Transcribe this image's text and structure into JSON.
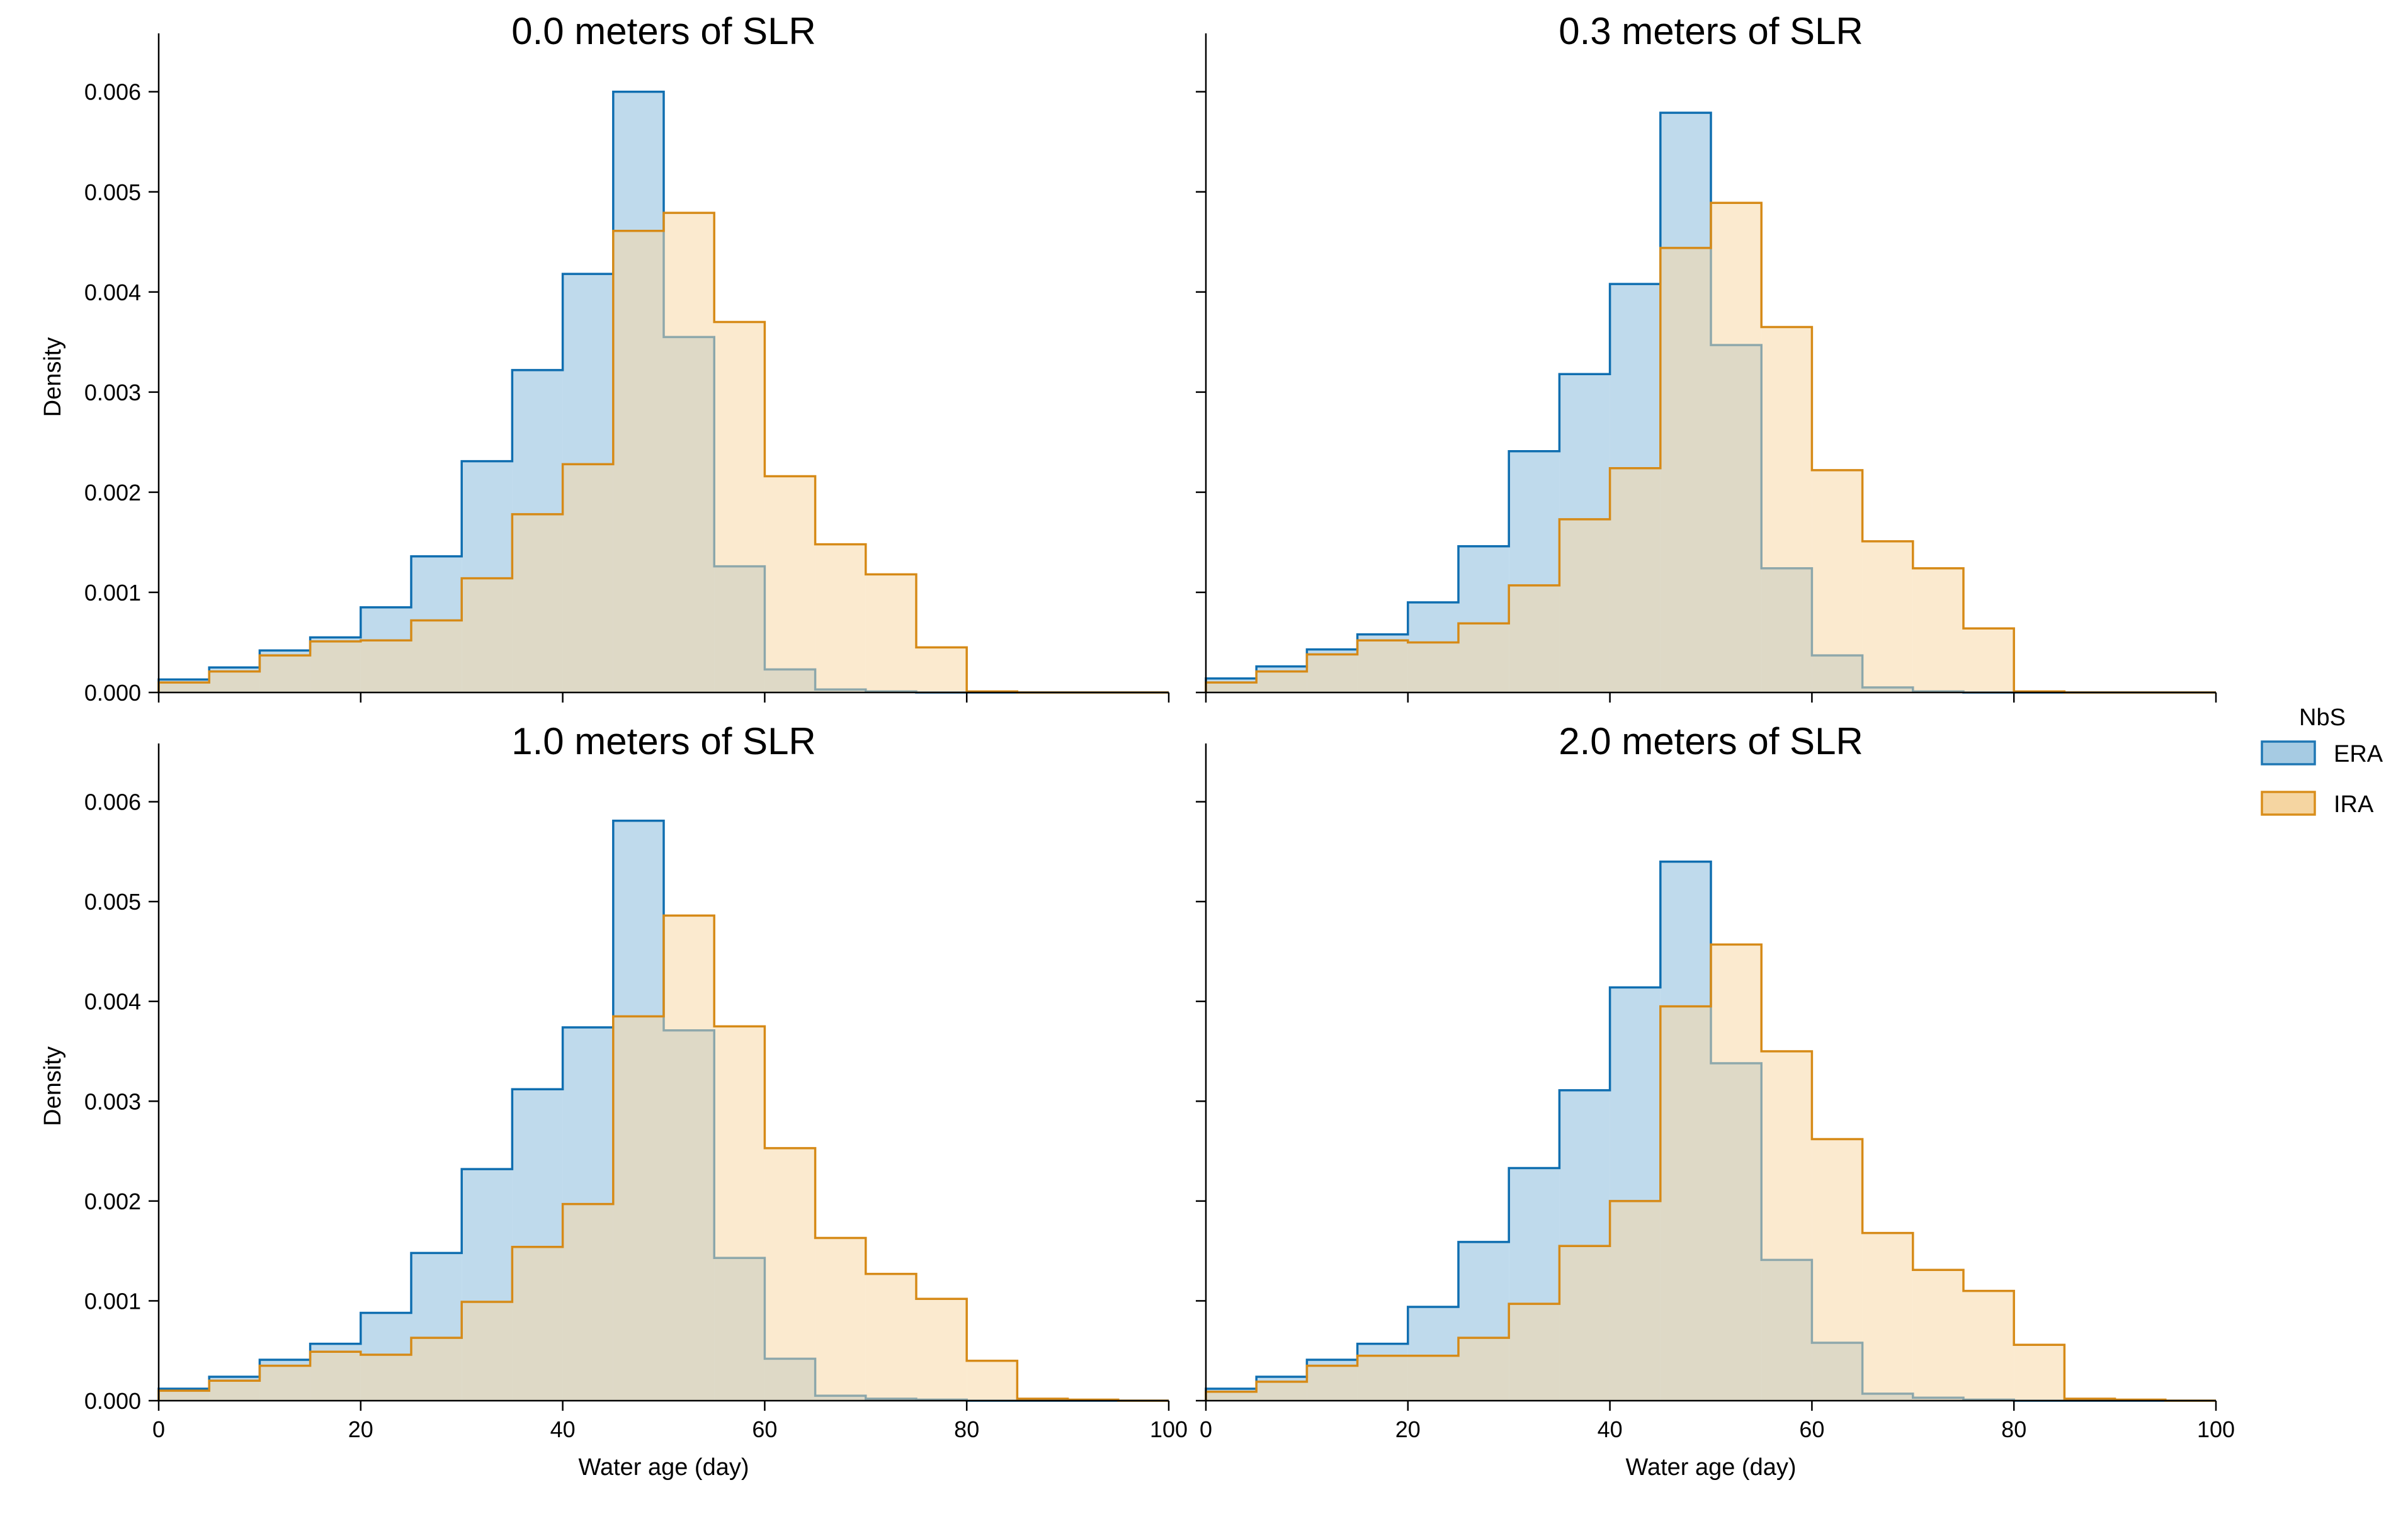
{
  "legend": {
    "title": "NbS",
    "entries": [
      {
        "name": "ERA",
        "edge": "#1f77b4",
        "fill": "#a6cbe3"
      },
      {
        "name": "IRA",
        "edge": "#d98e1b",
        "fill": "#f5d5a1"
      }
    ]
  },
  "colors": {
    "era_edge": "#0f6eb0",
    "era_fill": "#a9cde6",
    "ira_edge": "#d68a17",
    "ira_fill": "#f7d9a8",
    "axis": "#000000"
  },
  "chart_data": [
    {
      "type": "histogram",
      "title": "0.0 meters of SLR",
      "xlabel": "",
      "ylabel": "Density",
      "xlim": [
        0,
        100
      ],
      "ylim": [
        0,
        0.0063
      ],
      "bin_width": 5,
      "bin_edges_start": [
        0,
        5,
        10,
        15,
        20,
        25,
        30,
        35,
        40,
        45,
        50,
        55,
        60,
        65,
        70,
        75,
        80,
        85,
        90,
        95
      ],
      "series": [
        {
          "name": "ERA",
          "values": [
            0.00013,
            0.00025,
            0.00042,
            0.00055,
            0.00085,
            0.00136,
            0.00231,
            0.00322,
            0.00418,
            0.006,
            0.00355,
            0.00126,
            0.00023,
            3e-05,
            1e-05,
            0,
            0,
            0,
            0,
            0
          ]
        },
        {
          "name": "IRA",
          "values": [
            0.0001,
            0.00021,
            0.00037,
            0.00051,
            0.00052,
            0.00072,
            0.00114,
            0.00178,
            0.00228,
            0.00461,
            0.00479,
            0.0037,
            0.00216,
            0.00148,
            0.00118,
            0.00045,
            1e-05,
            0,
            0,
            0
          ]
        }
      ],
      "xticks": [
        "0",
        "20",
        "40",
        "60",
        "80",
        "100"
      ],
      "yticks": [
        "0.000",
        "0.001",
        "0.002",
        "0.003",
        "0.004",
        "0.005",
        "0.006"
      ]
    },
    {
      "type": "histogram",
      "title": "0.3 meters of SLR",
      "xlabel": "",
      "ylabel": "",
      "xlim": [
        0,
        100
      ],
      "ylim": [
        0,
        0.0063
      ],
      "bin_width": 5,
      "bin_edges_start": [
        0,
        5,
        10,
        15,
        20,
        25,
        30,
        35,
        40,
        45,
        50,
        55,
        60,
        65,
        70,
        75,
        80,
        85,
        90,
        95
      ],
      "series": [
        {
          "name": "ERA",
          "values": [
            0.00014,
            0.00026,
            0.00043,
            0.00058,
            0.0009,
            0.00146,
            0.00241,
            0.00318,
            0.00408,
            0.00579,
            0.00347,
            0.00124,
            0.00037,
            5e-05,
            1e-05,
            0,
            0,
            0,
            0,
            0
          ]
        },
        {
          "name": "IRA",
          "values": [
            0.0001,
            0.00021,
            0.00038,
            0.00052,
            0.0005,
            0.00069,
            0.00107,
            0.00173,
            0.00224,
            0.00444,
            0.00489,
            0.00365,
            0.00222,
            0.00151,
            0.00124,
            0.00064,
            1e-05,
            0,
            0,
            0
          ]
        }
      ],
      "xticks": [
        "0",
        "20",
        "40",
        "60",
        "80",
        "100"
      ],
      "yticks": [
        "0.000",
        "0.001",
        "0.002",
        "0.003",
        "0.004",
        "0.005",
        "0.006"
      ]
    },
    {
      "type": "histogram",
      "title": "1.0 meters of SLR",
      "xlabel": "Water age (day)",
      "ylabel": "Density",
      "xlim": [
        0,
        100
      ],
      "ylim": [
        0,
        0.0063
      ],
      "bin_width": 5,
      "bin_edges_start": [
        0,
        5,
        10,
        15,
        20,
        25,
        30,
        35,
        40,
        45,
        50,
        55,
        60,
        65,
        70,
        75,
        80,
        85,
        90,
        95
      ],
      "series": [
        {
          "name": "ERA",
          "values": [
            0.00012,
            0.00024,
            0.00041,
            0.00057,
            0.00088,
            0.00148,
            0.00232,
            0.00312,
            0.00374,
            0.00581,
            0.00371,
            0.00143,
            0.00042,
            5e-05,
            2e-05,
            1e-05,
            0,
            0,
            0,
            0
          ]
        },
        {
          "name": "IRA",
          "values": [
            0.0001,
            0.0002,
            0.00035,
            0.00049,
            0.00046,
            0.00063,
            0.00099,
            0.00154,
            0.00197,
            0.00385,
            0.00486,
            0.00375,
            0.00253,
            0.00163,
            0.00127,
            0.00102,
            0.0004,
            2e-05,
            1e-05,
            0
          ]
        }
      ],
      "xticks": [
        "0",
        "20",
        "40",
        "60",
        "80",
        "100"
      ],
      "yticks": [
        "0.000",
        "0.001",
        "0.002",
        "0.003",
        "0.004",
        "0.005",
        "0.006"
      ]
    },
    {
      "type": "histogram",
      "title": "2.0 meters of SLR",
      "xlabel": "Water age (day)",
      "ylabel": "",
      "xlim": [
        0,
        100
      ],
      "ylim": [
        0,
        0.0063
      ],
      "bin_width": 5,
      "bin_edges_start": [
        0,
        5,
        10,
        15,
        20,
        25,
        30,
        35,
        40,
        45,
        50,
        55,
        60,
        65,
        70,
        75,
        80,
        85,
        90,
        95
      ],
      "series": [
        {
          "name": "ERA",
          "values": [
            0.00012,
            0.00024,
            0.00041,
            0.00057,
            0.00094,
            0.00159,
            0.00233,
            0.00311,
            0.00414,
            0.0054,
            0.00338,
            0.00141,
            0.00058,
            7e-05,
            3e-05,
            1e-05,
            0,
            0,
            0,
            0
          ]
        },
        {
          "name": "IRA",
          "values": [
            9e-05,
            0.00019,
            0.00035,
            0.00045,
            0.00045,
            0.00063,
            0.00097,
            0.00155,
            0.002,
            0.00395,
            0.00457,
            0.0035,
            0.00262,
            0.00168,
            0.00131,
            0.0011,
            0.00056,
            2e-05,
            1e-05,
            0
          ]
        }
      ],
      "xticks": [
        "0",
        "20",
        "40",
        "60",
        "80",
        "100"
      ],
      "yticks": [
        "0.000",
        "0.001",
        "0.002",
        "0.003",
        "0.004",
        "0.005",
        "0.006"
      ]
    }
  ]
}
